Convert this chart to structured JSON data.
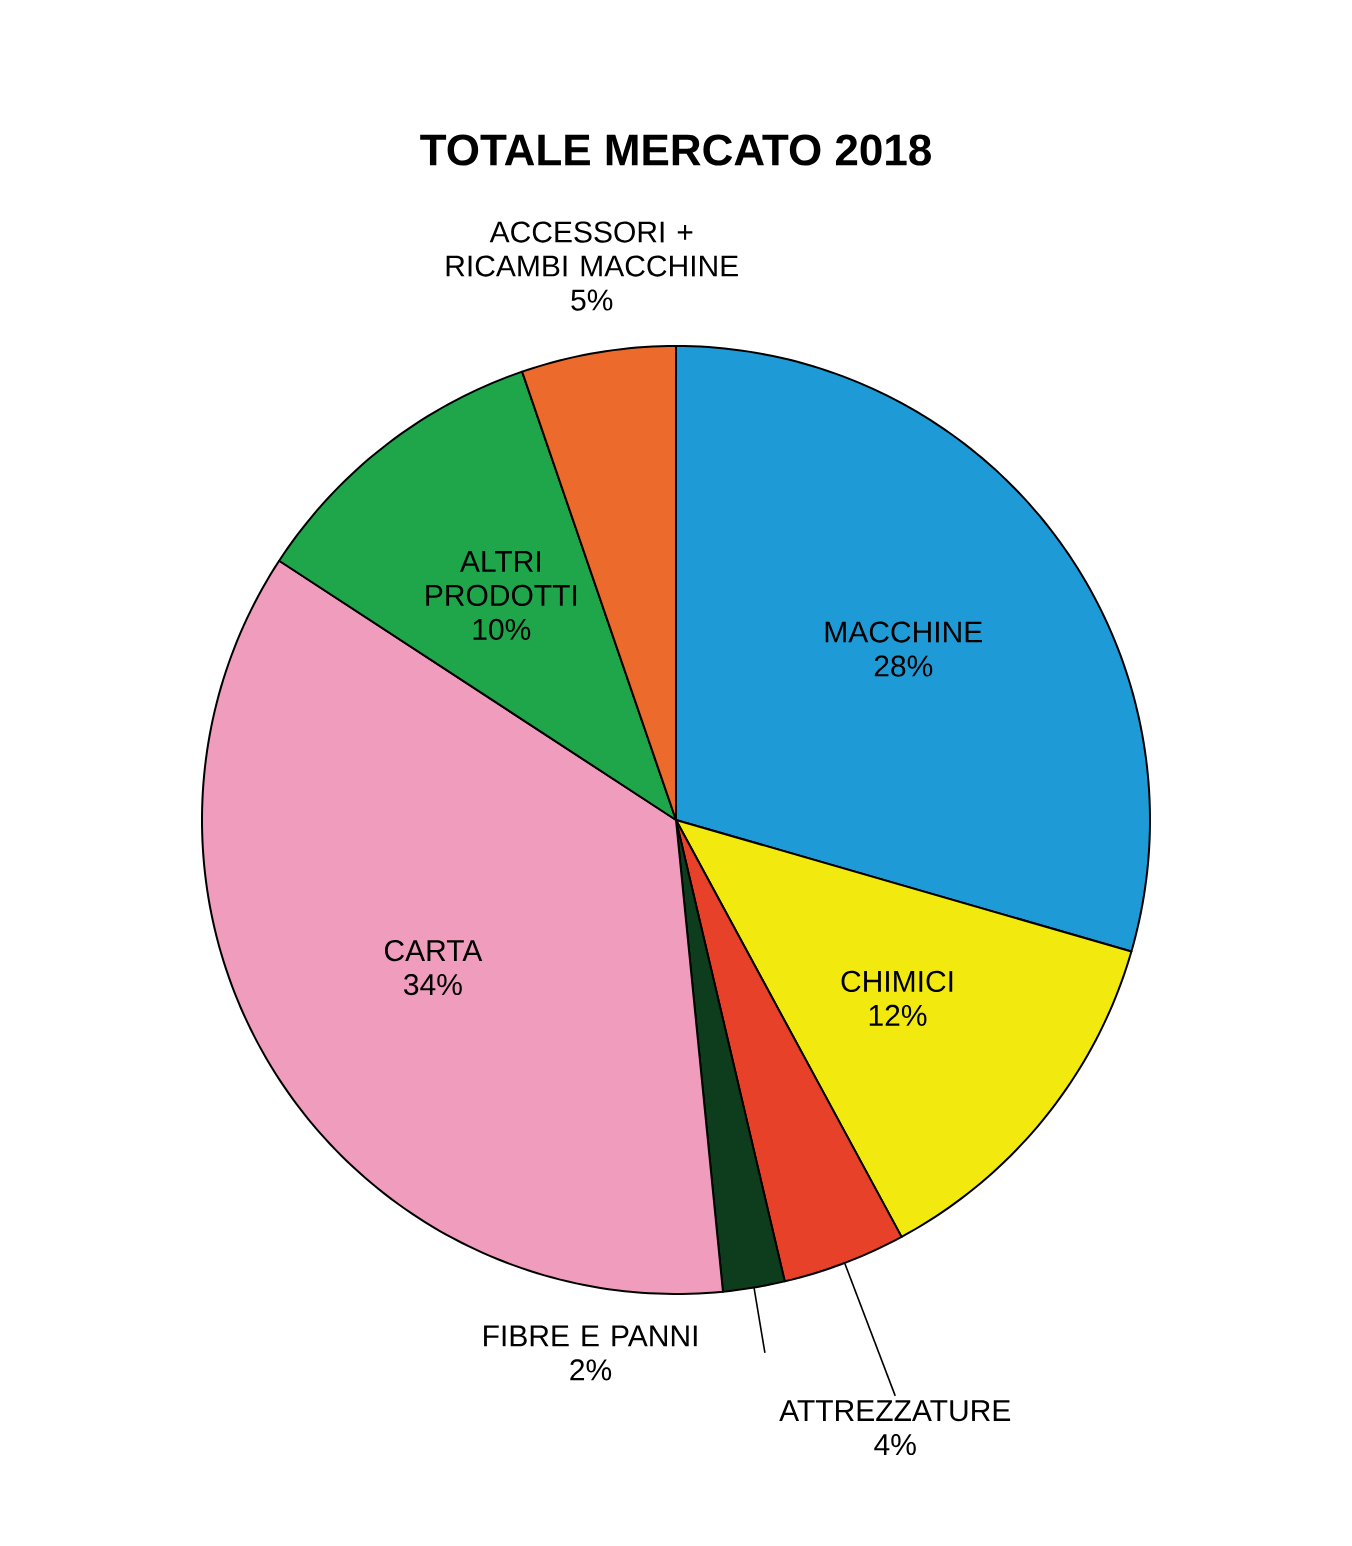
{
  "chart_data": {
    "type": "pie",
    "title": "TOTALE MERCATO 2018",
    "categories": [
      "MACCHINE",
      "CHIMICI",
      "ATTREZZATURE",
      "FIBRE E PANNI",
      "CARTA",
      "ALTRI PRODOTTI",
      "ACCESSORI + RICAMBI MACCHINE"
    ],
    "values": [
      28,
      12,
      4,
      2,
      34,
      10,
      5
    ],
    "value_labels": [
      "28%",
      "12%",
      "4%",
      "2%",
      "34%",
      "10%",
      "5%"
    ],
    "colors": [
      "#1e9ad6",
      "#f2ea0f",
      "#e8412a",
      "#0d3d1c",
      "#f09cbd",
      "#1fa64a",
      "#ec6a2c"
    ]
  }
}
